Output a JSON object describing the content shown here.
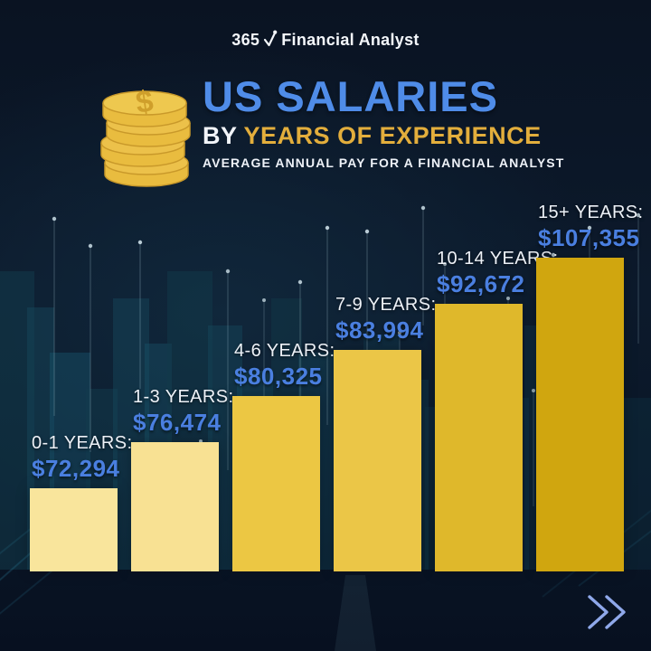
{
  "logo": {
    "prefix": "365",
    "name": "Financial Analyst",
    "check_icon": "checkmark-with-dot-icon"
  },
  "header": {
    "title": "US SALARIES",
    "subtitle_prefix": "BY ",
    "subtitle_highlight": "YEARS OF EXPERIENCE",
    "tagline": "AVERAGE ANNUAL PAY FOR A FINANCIAL ANALYST",
    "coin_icon": "coin-stack-icon"
  },
  "chart_data": {
    "type": "bar",
    "title": "US SALARIES BY YEARS OF EXPERIENCE",
    "subtitle": "AVERAGE ANNUAL PAY FOR A FINANCIAL ANALYST",
    "categories": [
      "0-1 YEARS:",
      "1-3 YEARS:",
      "4-6 YEARS:",
      "7-9 YEARS:",
      "10-14 YEARS:",
      "15+ YEARS:"
    ],
    "values": [
      72294,
      76474,
      80325,
      83994,
      92672,
      107355
    ],
    "value_labels": [
      "$72,294",
      "$76,474",
      "$80,325",
      "$83,994",
      "$92,672",
      "$107,355"
    ],
    "bar_colors": [
      "#F9E59C",
      "#F8E193",
      "#ECC743",
      "#EBC647",
      "#DFB82B",
      "#D0A60F"
    ],
    "xlabel": "",
    "ylabel": "",
    "legend": false,
    "grid": false,
    "label_color": "#EDF1F7",
    "value_color": "#4A7FE0"
  },
  "colors": {
    "background_navy": "#0B1627",
    "title_blue": "#4F8CE8",
    "accent_gold": "#E3AE3C",
    "coin_gold": "#E9BC3F",
    "chevron_blue": "#8FA8EA",
    "skyline_teal": "#19556C"
  },
  "footer": {
    "next_icon": "double-chevron-right-icon"
  }
}
